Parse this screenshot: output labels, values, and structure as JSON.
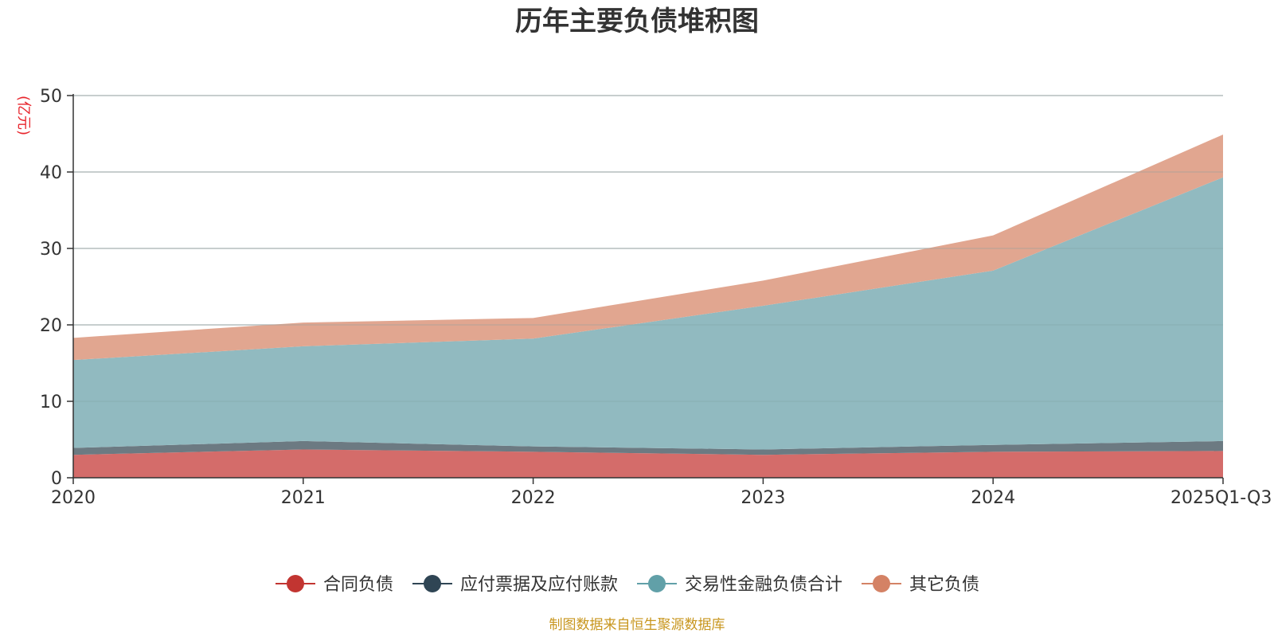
{
  "chart_data": {
    "type": "area",
    "stacked": true,
    "title": "历年主要负债堆积图",
    "ylabel": "(亿元)",
    "xlabel": "",
    "categories": [
      "2020",
      "2021",
      "2022",
      "2023",
      "2024",
      "2025Q1-Q3"
    ],
    "ylim": [
      0,
      50
    ],
    "yticks": [
      0,
      10,
      20,
      30,
      40,
      50
    ],
    "grid": true,
    "legend_position": "bottom",
    "series": [
      {
        "name": "合同负债",
        "color": "#c23531",
        "fill": "#d46c6a",
        "values": [
          3.0,
          3.7,
          3.4,
          3.0,
          3.4,
          3.5
        ]
      },
      {
        "name": "应付票据及应付账款",
        "color": "#2f4554",
        "fill": "#6c7a82",
        "values": [
          0.9,
          1.1,
          0.7,
          0.7,
          0.9,
          1.3
        ]
      },
      {
        "name": "交易性金融负债合计",
        "color": "#61a0a8",
        "fill": "#91bac0",
        "values": [
          11.5,
          12.4,
          14.1,
          18.8,
          22.8,
          34.5
        ]
      },
      {
        "name": "其它负债",
        "color": "#d48265",
        "fill": "#e1a690",
        "values": [
          2.9,
          3.1,
          2.7,
          3.3,
          4.6,
          5.6
        ]
      }
    ],
    "source_note": "制图数据来自恒生聚源数据库"
  }
}
